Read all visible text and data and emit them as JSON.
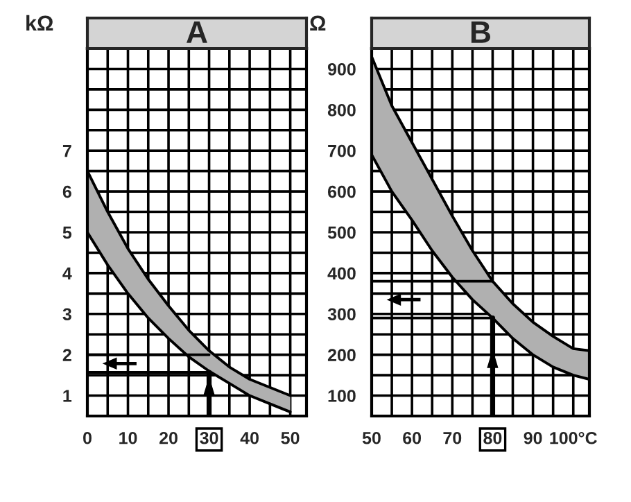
{
  "chart_data": [
    {
      "type": "line",
      "title": "A",
      "ylabel": "kΩ",
      "x": [
        0,
        5,
        10,
        15,
        20,
        25,
        30,
        35,
        40,
        45,
        50
      ],
      "series": [
        {
          "color": "#000000",
          "values": [
            6.5,
            5.5,
            4.6,
            3.85,
            3.2,
            2.6,
            2.1,
            1.7,
            1.4,
            1.2,
            1.0
          ],
          "lower": [
            5.0,
            4.2,
            3.5,
            2.9,
            2.4,
            1.95,
            1.6,
            1.3,
            1.0,
            0.8,
            0.6
          ],
          "upper": [
            6.5,
            5.5,
            4.6,
            3.85,
            3.2,
            2.6,
            2.1,
            1.7,
            1.4,
            1.2,
            1.0
          ]
        },
        {
          "color": "#000000",
          "values": [
            5.0,
            4.2,
            3.5,
            2.9,
            2.4,
            1.95,
            1.6,
            1.3,
            1.0,
            0.8,
            0.6
          ]
        }
      ],
      "xlim": [
        0,
        54
      ],
      "ylim": [
        0.5,
        9.5
      ],
      "xticks": [
        0,
        {
          "value": 5,
          "label": null
        },
        10,
        {
          "value": 15,
          "label": null
        },
        20,
        {
          "value": 25,
          "label": null
        },
        30,
        {
          "value": 35,
          "label": null
        },
        40,
        {
          "value": 45,
          "label": null
        },
        50
      ],
      "yticks": [
        {
          "value": 0.5,
          "label": null
        },
        1,
        {
          "value": 1.5,
          "label": null
        },
        2,
        {
          "value": 2.5,
          "label": null
        },
        3,
        {
          "value": 3.5,
          "label": null
        },
        4,
        {
          "value": 4.5,
          "label": null
        },
        5,
        {
          "value": 5.5,
          "label": null
        },
        6,
        {
          "value": 6.5,
          "label": null
        },
        7,
        {
          "value": 7.5,
          "label": null
        },
        {
          "value": 8,
          "label": null
        },
        {
          "value": 8.5,
          "label": null
        },
        {
          "value": 9,
          "label": null
        }
      ],
      "grid": true,
      "marker": "none",
      "line_style": "solid",
      "ref_lines": [
        {
          "axis": "x",
          "value": 30,
          "label": null
        },
        {
          "axis": "y",
          "value": 2.0,
          "label": null
        },
        {
          "axis": "y",
          "value": 1.57,
          "label": null
        }
      ]
    },
    {
      "type": "line",
      "title": "B",
      "ylabel": "Ω",
      "x": [
        50,
        55,
        60,
        65,
        70,
        75,
        80,
        85,
        90,
        95,
        100,
        104
      ],
      "series": [
        {
          "color": "#000000",
          "values": [
            930,
            810,
            720,
            630,
            540,
            455,
            380,
            325,
            280,
            245,
            215,
            210
          ],
          "lower": [
            690,
            600,
            530,
            455,
            390,
            335,
            290,
            240,
            200,
            170,
            150,
            140
          ],
          "upper": [
            930,
            810,
            720,
            630,
            540,
            455,
            380,
            325,
            280,
            245,
            215,
            210
          ]
        },
        {
          "color": "#000000",
          "values": [
            690,
            600,
            530,
            455,
            390,
            335,
            290,
            240,
            200,
            170,
            150,
            140
          ]
        }
      ],
      "xlim": [
        50,
        104
      ],
      "ylim": [
        50,
        950
      ],
      "xticks": [
        50,
        {
          "value": 55,
          "label": null
        },
        60,
        {
          "value": 65,
          "label": null
        },
        70,
        {
          "value": 75,
          "label": null
        },
        80,
        {
          "value": 85,
          "label": null
        },
        90,
        {
          "value": 95,
          "label": null
        },
        {
          "value": 100,
          "label": "100°C"
        }
      ],
      "yticks": [
        100,
        {
          "value": 150,
          "label": null
        },
        200,
        {
          "value": 250,
          "label": null
        },
        300,
        {
          "value": 350,
          "label": null
        },
        400,
        {
          "value": 450,
          "label": null
        },
        500,
        {
          "value": 550,
          "label": null
        },
        600,
        {
          "value": 650,
          "label": null
        },
        700,
        {
          "value": 750,
          "label": null
        },
        800,
        {
          "value": 850,
          "label": null
        },
        900
      ],
      "grid": true,
      "marker": "none",
      "line_style": "solid",
      "ref_lines": [
        {
          "axis": "x",
          "value": 80,
          "label": null
        },
        {
          "axis": "y",
          "value": 380,
          "label": null
        },
        {
          "axis": "y",
          "value": 290,
          "label": null
        }
      ]
    }
  ]
}
